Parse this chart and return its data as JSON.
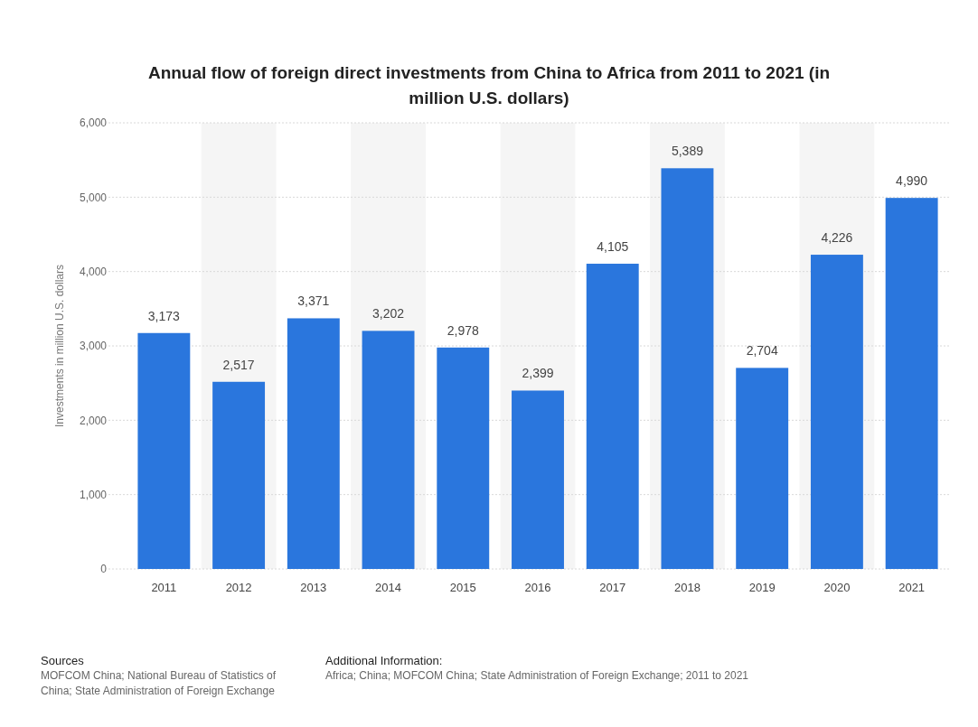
{
  "chart_data": {
    "type": "bar",
    "title": "Annual flow of foreign direct investments from China to Africa from 2011 to 2021 (in million U.S. dollars)",
    "ylabel": "Investments in million U.S. dollars",
    "categories": [
      "2011",
      "2012",
      "2013",
      "2014",
      "2015",
      "2016",
      "2017",
      "2018",
      "2019",
      "2020",
      "2021"
    ],
    "values": [
      3173,
      2517,
      3371,
      3202,
      2978,
      2399,
      4105,
      5389,
      2704,
      4226,
      4990
    ],
    "value_labels": [
      "3,173",
      "2,517",
      "3,371",
      "3,202",
      "2,978",
      "2,399",
      "4,105",
      "5,389",
      "2,704",
      "4,226",
      "4,990"
    ],
    "color": "#2a76dd",
    "ylim": [
      0,
      6000
    ],
    "yticks": [
      {
        "value": 0,
        "label": "0"
      },
      {
        "value": 1000,
        "label": "1,000"
      },
      {
        "value": 2000,
        "label": "2,000"
      },
      {
        "value": 3000,
        "label": "3,000"
      },
      {
        "value": 4000,
        "label": "4,000"
      },
      {
        "value": 5000,
        "label": "5,000"
      },
      {
        "value": 6000,
        "label": "6,000"
      }
    ],
    "grid": "y",
    "annotations": [
      "Sources",
      "MOFCOM China; National Bureau of Statistics of China; State Administration of Foreign Exchange",
      "Additional Information:",
      "Africa; China; MOFCOM China; State Administration of Foreign Exchange; 2011 to 2021"
    ]
  }
}
